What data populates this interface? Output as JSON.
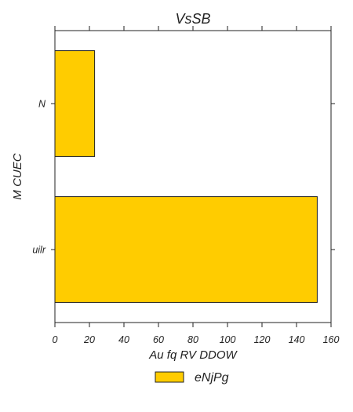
{
  "chart_data": {
    "type": "bar",
    "orientation": "horizontal",
    "title": "VsSB",
    "xlabel": "Au fq RV DDOW",
    "ylabel": "M CUEC",
    "categories": [
      "N",
      "uilr"
    ],
    "series": [
      {
        "name": "eNjPg",
        "values": [
          23,
          152
        ],
        "color": "#FFCC00"
      }
    ],
    "xlim": [
      0,
      160
    ],
    "xticks": [
      0,
      20,
      40,
      60,
      80,
      100,
      120,
      140,
      160
    ],
    "xtick_labels": [
      "0",
      "20",
      "40",
      "60",
      "80",
      "100",
      "120",
      "140",
      "160"
    ],
    "grid": false,
    "legend_position": "bottom-center"
  }
}
